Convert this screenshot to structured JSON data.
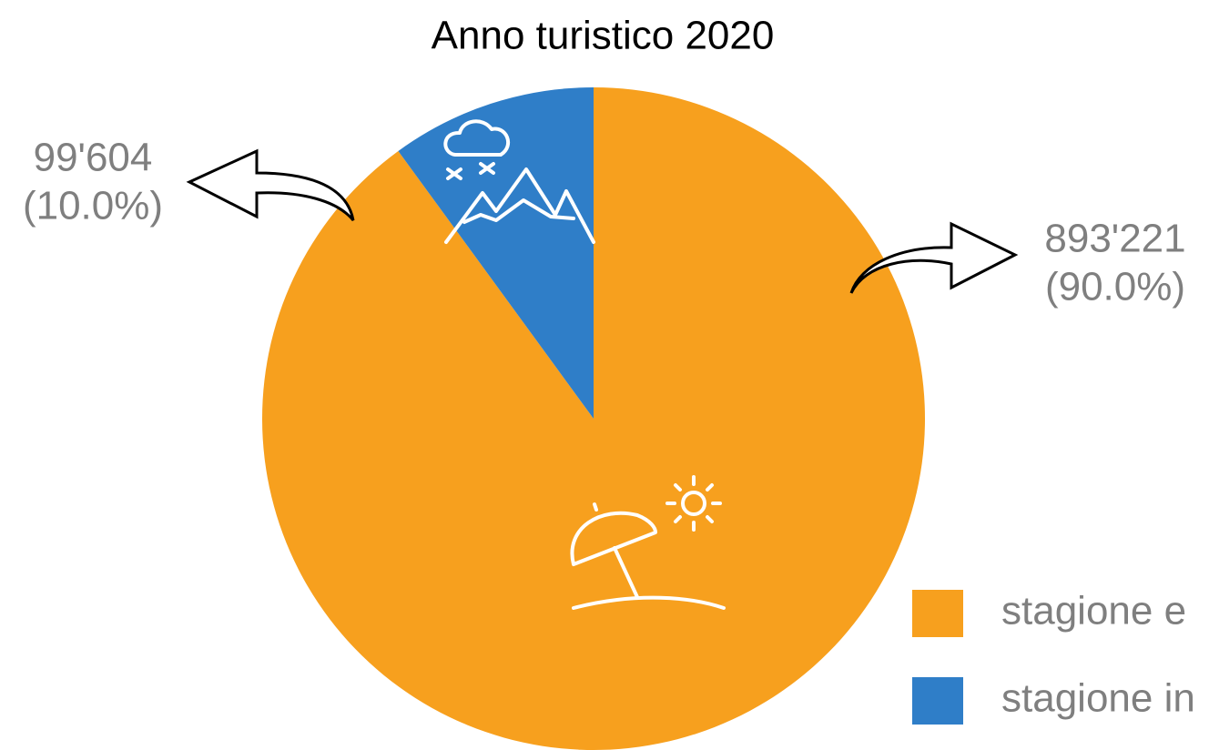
{
  "chart_data": {
    "type": "pie",
    "title": "Anno turistico 2020",
    "categories": [
      "stagione e",
      "stagione in"
    ],
    "values": [
      893221,
      99604
    ],
    "value_labels": [
      "893'221",
      "99'604"
    ],
    "percentages": [
      90.0,
      10.0
    ],
    "percentage_labels": [
      "(90.0%)",
      "(10.0%)"
    ],
    "colors": [
      "#f7a01e",
      "#2f7ec8"
    ],
    "legend": "bottom-right"
  }
}
